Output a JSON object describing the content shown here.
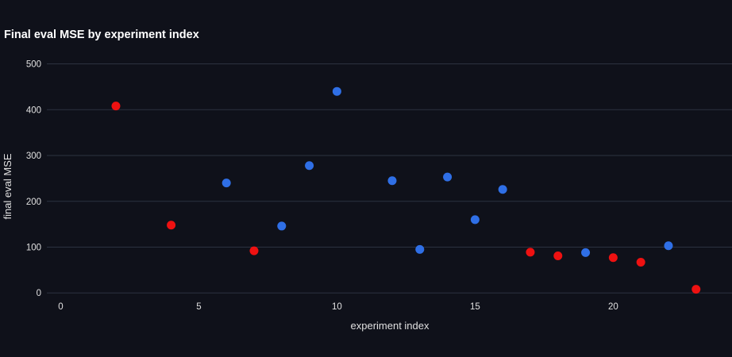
{
  "chart_data": {
    "type": "scatter",
    "title": "Final eval MSE by experiment index",
    "xlabel": "experiment index",
    "ylabel": "final eval MSE",
    "xlim": [
      -0.5,
      24.3
    ],
    "ylim": [
      -10,
      520
    ],
    "xticks": [
      0,
      5,
      10,
      15,
      20
    ],
    "yticks": [
      0,
      100,
      200,
      300,
      400,
      500
    ],
    "grid": "horizontal",
    "legend": "none",
    "colors": {
      "red": "#ee1111",
      "blue": "#2f6fe6",
      "background": "#0f111a",
      "grid": "#2c3240"
    },
    "points": [
      {
        "x": 2,
        "y": 408,
        "color": "red"
      },
      {
        "x": 4,
        "y": 148,
        "color": "red"
      },
      {
        "x": 6,
        "y": 240,
        "color": "blue"
      },
      {
        "x": 7,
        "y": 92,
        "color": "red"
      },
      {
        "x": 8,
        "y": 146,
        "color": "blue"
      },
      {
        "x": 9,
        "y": 278,
        "color": "blue"
      },
      {
        "x": 10,
        "y": 440,
        "color": "blue"
      },
      {
        "x": 12,
        "y": 245,
        "color": "blue"
      },
      {
        "x": 13,
        "y": 95,
        "color": "blue"
      },
      {
        "x": 14,
        "y": 253,
        "color": "blue"
      },
      {
        "x": 15,
        "y": 160,
        "color": "blue"
      },
      {
        "x": 16,
        "y": 226,
        "color": "blue"
      },
      {
        "x": 17,
        "y": 89,
        "color": "red"
      },
      {
        "x": 18,
        "y": 81,
        "color": "red"
      },
      {
        "x": 19,
        "y": 88,
        "color": "blue"
      },
      {
        "x": 20,
        "y": 77,
        "color": "red"
      },
      {
        "x": 21,
        "y": 67,
        "color": "red"
      },
      {
        "x": 22,
        "y": 103,
        "color": "blue"
      },
      {
        "x": 23,
        "y": 8,
        "color": "red"
      }
    ]
  }
}
